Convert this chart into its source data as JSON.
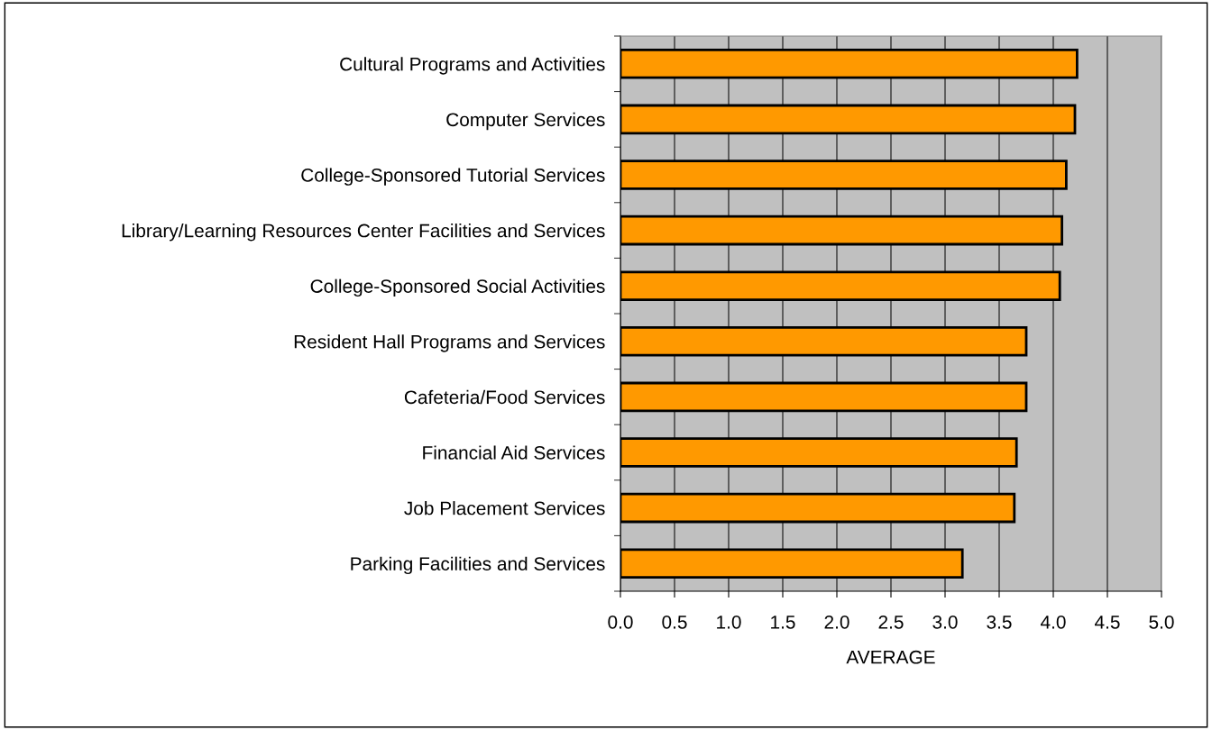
{
  "chart_data": {
    "type": "bar",
    "orientation": "horizontal",
    "xlabel": "AVERAGE",
    "categories": [
      "Cultural Programs and Activities",
      "Computer Services",
      "College-Sponsored Tutorial Services",
      "Library/Learning Resources Center Facilities and Services",
      "College-Sponsored Social Activities",
      "Resident Hall Programs and Services",
      "Cafeteria/Food Services",
      "Financial Aid Services",
      "Job Placement Services",
      "Parking Facilities and Services"
    ],
    "values": [
      4.22,
      4.2,
      4.12,
      4.08,
      4.06,
      3.75,
      3.75,
      3.66,
      3.64,
      3.16
    ],
    "color": "#ff9900",
    "xlim": [
      0,
      5
    ],
    "xticks": [
      {
        "value": 0,
        "label": "0.0"
      },
      {
        "value": 0.5,
        "label": "0.5"
      },
      {
        "value": 1,
        "label": "1.0"
      },
      {
        "value": 1.5,
        "label": "1.5"
      },
      {
        "value": 2,
        "label": "2.0"
      },
      {
        "value": 2.5,
        "label": "2.5"
      },
      {
        "value": 3,
        "label": "3.0"
      },
      {
        "value": 3.5,
        "label": "3.5"
      },
      {
        "value": 4,
        "label": "4.0"
      },
      {
        "value": 4.5,
        "label": "4.5"
      },
      {
        "value": 5,
        "label": "5.0"
      }
    ],
    "grid": "x",
    "legend": false
  }
}
